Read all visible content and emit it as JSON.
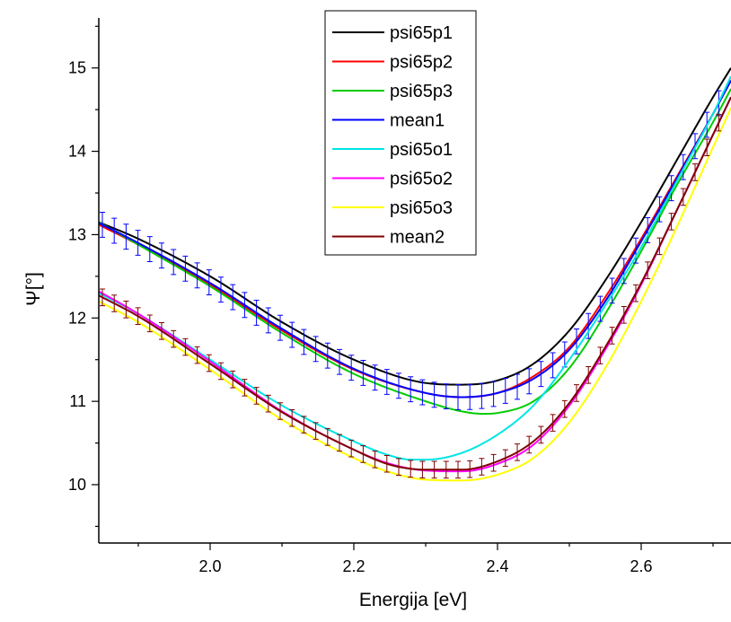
{
  "chart_data": {
    "type": "line",
    "title": "",
    "xlabel": "Energija [eV]",
    "ylabel": "Ψ[°]",
    "xlim": [
      1.845,
      2.725
    ],
    "ylim": [
      9.3,
      15.6
    ],
    "xticks": [
      {
        "value": 2.0,
        "label": "2.0"
      },
      {
        "value": 2.2,
        "label": "2.2"
      },
      {
        "value": 2.4,
        "label": "2.4"
      },
      {
        "value": 2.6,
        "label": "2.6"
      }
    ],
    "yticks": [
      {
        "value": 10,
        "label": "10"
      },
      {
        "value": 11,
        "label": "11"
      },
      {
        "value": 12,
        "label": "12"
      },
      {
        "value": 13,
        "label": "13"
      },
      {
        "value": 14,
        "label": "14"
      },
      {
        "value": 15,
        "label": "15"
      }
    ],
    "legend_position": "top-center",
    "grid": false,
    "series": [
      {
        "name": "psi65p1",
        "color": "#000000",
        "x": [
          1.845,
          1.9,
          2.0,
          2.1,
          2.2,
          2.3,
          2.35,
          2.4,
          2.45,
          2.5,
          2.55,
          2.6,
          2.65,
          2.7,
          2.725
        ],
        "y": [
          13.15,
          12.95,
          12.5,
          11.95,
          11.5,
          11.22,
          11.2,
          11.25,
          11.45,
          11.85,
          12.45,
          13.15,
          13.9,
          14.65,
          15.0
        ]
      },
      {
        "name": "psi65p2",
        "color": "#ff0000",
        "x": [
          1.845,
          1.9,
          2.0,
          2.1,
          2.2,
          2.3,
          2.35,
          2.4,
          2.45,
          2.5,
          2.55,
          2.6,
          2.65,
          2.7,
          2.725
        ],
        "y": [
          13.12,
          12.88,
          12.4,
          11.85,
          11.38,
          11.1,
          11.05,
          11.1,
          11.3,
          11.65,
          12.25,
          12.95,
          13.7,
          14.45,
          14.85
        ]
      },
      {
        "name": "psi65p3",
        "color": "#00cc00",
        "x": [
          1.845,
          1.9,
          2.0,
          2.1,
          2.2,
          2.3,
          2.35,
          2.38,
          2.4,
          2.45,
          2.5,
          2.55,
          2.6,
          2.65,
          2.7,
          2.725
        ],
        "y": [
          13.15,
          12.88,
          12.38,
          11.82,
          11.33,
          11.0,
          10.88,
          10.85,
          10.86,
          11.0,
          11.4,
          12.05,
          12.8,
          13.6,
          14.35,
          14.75
        ]
      },
      {
        "name": "mean1",
        "color": "#0000ff",
        "x": [
          1.845,
          1.9,
          2.0,
          2.1,
          2.2,
          2.3,
          2.35,
          2.4,
          2.45,
          2.5,
          2.55,
          2.6,
          2.65,
          2.7,
          2.725
        ],
        "y": [
          13.14,
          12.9,
          12.42,
          11.87,
          11.39,
          11.1,
          11.05,
          11.1,
          11.27,
          11.62,
          12.2,
          12.92,
          13.68,
          14.45,
          14.85
        ],
        "error": 0.15
      },
      {
        "name": "psi65o1",
        "color": "#00e5e5",
        "x": [
          1.845,
          1.9,
          2.0,
          2.1,
          2.2,
          2.25,
          2.28,
          2.3,
          2.35,
          2.4,
          2.45,
          2.5,
          2.55,
          2.6,
          2.65,
          2.7,
          2.725
        ],
        "y": [
          12.3,
          12.05,
          11.5,
          10.95,
          10.52,
          10.35,
          10.3,
          10.3,
          10.38,
          10.6,
          10.95,
          11.5,
          12.15,
          12.85,
          13.65,
          14.45,
          14.9
        ]
      },
      {
        "name": "psi65o2",
        "color": "#ff00ff",
        "x": [
          1.845,
          1.9,
          2.0,
          2.1,
          2.2,
          2.25,
          2.3,
          2.35,
          2.4,
          2.45,
          2.5,
          2.55,
          2.6,
          2.65,
          2.7,
          2.725
        ],
        "y": [
          12.32,
          12.05,
          11.48,
          10.88,
          10.42,
          10.25,
          10.17,
          10.16,
          10.25,
          10.48,
          10.95,
          11.62,
          12.4,
          13.3,
          14.2,
          14.65
        ]
      },
      {
        "name": "psi65o3",
        "color": "#ffff00",
        "x": [
          1.845,
          1.9,
          2.0,
          2.1,
          2.2,
          2.25,
          2.3,
          2.35,
          2.4,
          2.45,
          2.5,
          2.55,
          2.6,
          2.65,
          2.7,
          2.725
        ],
        "y": [
          12.2,
          11.95,
          11.38,
          10.78,
          10.32,
          10.15,
          10.06,
          10.05,
          10.12,
          10.32,
          10.75,
          11.4,
          12.2,
          13.1,
          14.05,
          14.52
        ]
      },
      {
        "name": "mean2",
        "color": "#800000",
        "x": [
          1.845,
          1.9,
          2.0,
          2.1,
          2.2,
          2.25,
          2.3,
          2.35,
          2.4,
          2.45,
          2.5,
          2.55,
          2.6,
          2.65,
          2.7,
          2.725
        ],
        "y": [
          12.27,
          12.02,
          11.45,
          10.87,
          10.42,
          10.24,
          10.18,
          10.18,
          10.28,
          10.52,
          10.98,
          11.65,
          12.42,
          13.3,
          14.2,
          14.65
        ],
        "error": 0.1
      }
    ]
  }
}
